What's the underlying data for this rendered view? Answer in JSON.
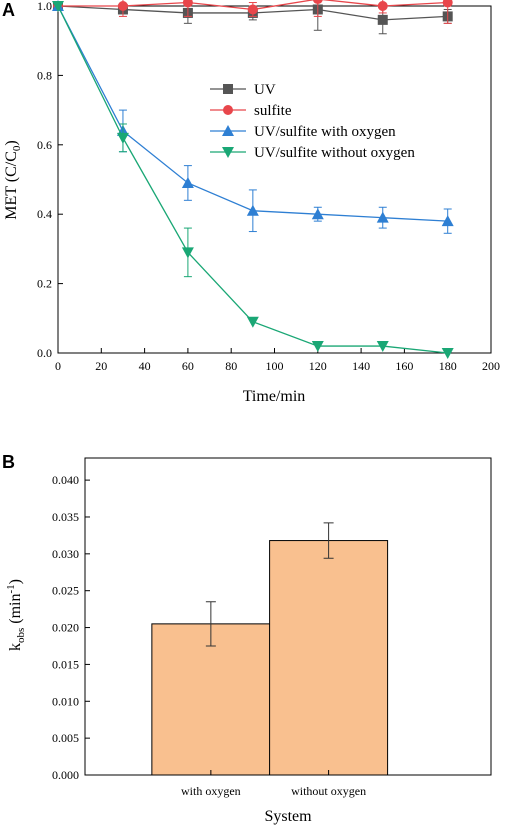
{
  "chart_data": [
    {
      "type": "line",
      "panel_label": "A",
      "xlabel": "Time/min",
      "ylabel_main": "MET (C/C",
      "ylabel_sub": "0",
      "ylabel_close": ")",
      "xlim": [
        0,
        200
      ],
      "ylim": [
        0,
        1.0
      ],
      "x_ticks": [
        "0",
        "20",
        "40",
        "60",
        "80",
        "100",
        "120",
        "140",
        "160",
        "180",
        "200"
      ],
      "y_ticks": [
        "0.0",
        "0.2",
        "0.4",
        "0.6",
        "0.8",
        "1.0"
      ],
      "legend_position": "upper-right",
      "grid": false,
      "series": [
        {
          "name": "UV",
          "color": "#555555",
          "marker": "square",
          "x": [
            0,
            30,
            60,
            90,
            120,
            150,
            180
          ],
          "y": [
            1.0,
            0.99,
            0.98,
            0.98,
            0.99,
            0.96,
            0.97
          ],
          "err": [
            0,
            0.01,
            0.03,
            0.02,
            0.06,
            0.04,
            0.02
          ]
        },
        {
          "name": "sulfite",
          "color": "#e8464b",
          "marker": "circle",
          "x": [
            0,
            30,
            60,
            90,
            120,
            150,
            180
          ],
          "y": [
            1.0,
            1.0,
            1.01,
            0.99,
            1.02,
            1.0,
            1.01
          ],
          "err": [
            0,
            0.03,
            0.04,
            0.02,
            0.05,
            0.02,
            0.06
          ]
        },
        {
          "name": "UV/sulfite with oxygen",
          "color": "#2e7fd3",
          "marker": "triangle-up",
          "x": [
            0,
            30,
            60,
            90,
            120,
            150,
            180
          ],
          "y": [
            1.0,
            0.64,
            0.49,
            0.41,
            0.4,
            0.39,
            0.38
          ],
          "err": [
            0,
            0.06,
            0.05,
            0.06,
            0.02,
            0.03,
            0.035
          ]
        },
        {
          "name": "UV/sulfite without oxygen",
          "color": "#1aa775",
          "marker": "triangle-down",
          "x": [
            0,
            30,
            60,
            90,
            120,
            150,
            180
          ],
          "y": [
            1.0,
            0.62,
            0.29,
            0.09,
            0.02,
            0.02,
            0.0
          ],
          "err": [
            0,
            0.04,
            0.07,
            0.0,
            0.0,
            0.0,
            0.0
          ]
        }
      ]
    },
    {
      "type": "bar",
      "panel_label": "B",
      "xlabel": "System",
      "ylabel_main": "k",
      "ylabel_sub": "obs",
      "ylabel_rest": " (min",
      "ylabel_sup": "-1",
      "ylabel_close": ")",
      "categories": [
        "with oxygen",
        "without oxygen"
      ],
      "values": [
        0.0205,
        0.0318
      ],
      "errors": [
        0.003,
        0.0024
      ],
      "ylim": [
        0,
        0.043
      ],
      "y_ticks": [
        "0.000",
        "0.005",
        "0.010",
        "0.015",
        "0.020",
        "0.025",
        "0.030",
        "0.035",
        "0.040"
      ],
      "bar_color": "#f9c08f",
      "grid": false
    }
  ]
}
